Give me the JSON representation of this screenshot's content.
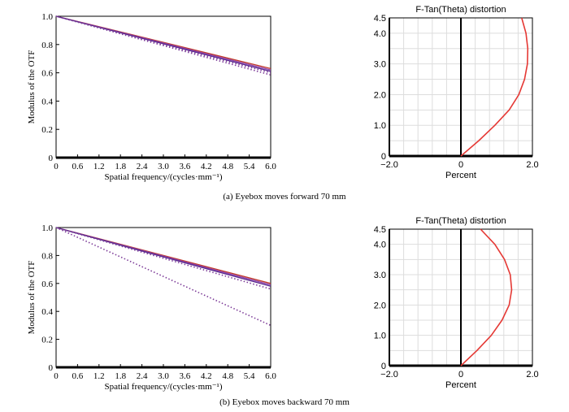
{
  "colors": {
    "mtf_lines": [
      "#c0392b",
      "#8e44ad",
      "#5b2c8f",
      "#2e86c1"
    ],
    "dotted": "#7d3c98",
    "distortion": "#e53935",
    "grid": "#dddddd",
    "axis": "#000000"
  },
  "chart_data": [
    {
      "type": "line",
      "id": "mtf-a",
      "ylabel": "Modulus of the OTF",
      "xlabel": "Spatial frequency/(cycles·mm⁻¹)",
      "xlim": [
        0,
        6.0
      ],
      "ylim": [
        0,
        1.0
      ],
      "xticks": [
        "0",
        "0.6",
        "1.2",
        "1.8",
        "2.4",
        "3.0",
        "3.6",
        "4.2",
        "4.8",
        "5.4",
        "6.0"
      ],
      "yticks": [
        "0",
        "0.2",
        "0.4",
        "0.6",
        "0.8",
        "1.0"
      ],
      "grid": false,
      "series": [
        {
          "name": "s1",
          "style": "solid",
          "x": [
            0,
            6.0
          ],
          "y": [
            1.0,
            0.63
          ]
        },
        {
          "name": "s2",
          "style": "solid",
          "x": [
            0,
            6.0
          ],
          "y": [
            1.0,
            0.62
          ]
        },
        {
          "name": "s3",
          "style": "solid",
          "x": [
            0,
            6.0
          ],
          "y": [
            1.0,
            0.61
          ]
        },
        {
          "name": "s4",
          "style": "dotted",
          "x": [
            0,
            6.0
          ],
          "y": [
            1.0,
            0.6
          ]
        },
        {
          "name": "s5",
          "style": "dotted",
          "x": [
            0,
            6.0
          ],
          "y": [
            1.0,
            0.585
          ]
        }
      ]
    },
    {
      "type": "line",
      "id": "dist-a",
      "title": "F-Tan(Theta) distortion",
      "xlabel": "Percent",
      "xlim": [
        -2.0,
        2.0
      ],
      "ylim": [
        0,
        4.5
      ],
      "xticks": [
        "−2.0",
        "0",
        "2.0"
      ],
      "yticks": [
        "0",
        "1.0",
        "2.0",
        "3.0",
        "4.0",
        "4.5"
      ],
      "grid": true,
      "series": [
        {
          "name": "distortion",
          "x": [
            0,
            0.5,
            0.95,
            1.35,
            1.62,
            1.78,
            1.86,
            1.87,
            1.82,
            1.7
          ],
          "y": [
            0,
            0.5,
            1.0,
            1.5,
            2.0,
            2.5,
            3.0,
            3.5,
            4.0,
            4.5
          ]
        }
      ]
    },
    {
      "type": "line",
      "id": "mtf-b",
      "ylabel": "Modulus of the OTF",
      "xlabel": "Spatial frequency/(cycles·mm⁻¹)",
      "xlim": [
        0,
        6.0
      ],
      "ylim": [
        0,
        1.0
      ],
      "xticks": [
        "0",
        "0.6",
        "1.2",
        "1.8",
        "2.4",
        "3.0",
        "3.6",
        "4.2",
        "4.8",
        "5.4",
        "6.0"
      ],
      "yticks": [
        "0",
        "0.2",
        "0.4",
        "0.6",
        "0.8",
        "1.0"
      ],
      "grid": false,
      "series": [
        {
          "name": "s1",
          "style": "solid",
          "x": [
            0,
            6.0
          ],
          "y": [
            1.0,
            0.6
          ]
        },
        {
          "name": "s2",
          "style": "solid",
          "x": [
            0,
            6.0
          ],
          "y": [
            1.0,
            0.59
          ]
        },
        {
          "name": "s3",
          "style": "solid",
          "x": [
            0,
            6.0
          ],
          "y": [
            1.0,
            0.58
          ]
        },
        {
          "name": "s4",
          "style": "dotted",
          "x": [
            0,
            6.0
          ],
          "y": [
            1.0,
            0.56
          ]
        },
        {
          "name": "s5",
          "style": "dotted",
          "x": [
            0,
            6.0
          ],
          "y": [
            1.0,
            0.3
          ]
        }
      ]
    },
    {
      "type": "line",
      "id": "dist-b",
      "title": "F-Tan(Theta) distortion",
      "xlabel": "Percent",
      "xlim": [
        -2.0,
        2.0
      ],
      "ylim": [
        0,
        4.5
      ],
      "xticks": [
        "−2.0",
        "0",
        "2.0"
      ],
      "yticks": [
        "0",
        "1.0",
        "2.0",
        "3.0",
        "4.0",
        "4.5"
      ],
      "grid": true,
      "series": [
        {
          "name": "distortion",
          "x": [
            0,
            0.45,
            0.85,
            1.15,
            1.35,
            1.42,
            1.38,
            1.22,
            0.95,
            0.55
          ],
          "y": [
            0,
            0.5,
            1.0,
            1.5,
            2.0,
            2.5,
            3.0,
            3.5,
            4.0,
            4.5
          ]
        }
      ]
    }
  ],
  "captions": {
    "a": "(a) Eyebox moves forward 70 mm",
    "b": "(b) Eyebox moves backward 70 mm"
  }
}
